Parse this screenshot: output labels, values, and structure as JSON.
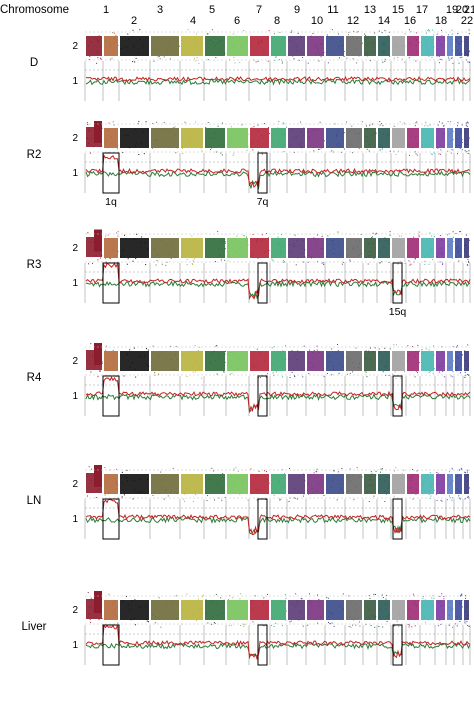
{
  "chart_data": {
    "type": "scatter",
    "axis_title": "Chromosome",
    "chromosomes": [
      "1",
      "2",
      "3",
      "4",
      "5",
      "6",
      "7",
      "8",
      "9",
      "10",
      "11",
      "12",
      "13",
      "14",
      "15",
      "16",
      "17",
      "18",
      "19",
      "20",
      "21",
      "22"
    ],
    "chromosome_colors": [
      "#8c1c2e",
      "#b3693c",
      "#111111",
      "#6e6c3a",
      "#b8b33c",
      "#2e6b3a",
      "#77c25c",
      "#b3263a",
      "#3ea670",
      "#5a3a75",
      "#7a3380",
      "#3a4a86",
      "#696969",
      "#3a5a40",
      "#2a5a55",
      "#a0a0a0",
      "#9e2a74",
      "#47b5b1",
      "#7d3aa0",
      "#5b7bc4",
      "#3c4a9c",
      "#3a3a7a"
    ],
    "bin_counts": [
      34,
      20,
      12,
      8,
      12
    ],
    "series_colors": {
      "upper": "#c22222",
      "lower": "#2f7a3a"
    },
    "y_ticks": {
      "upper_panel": "2",
      "lower_panel": "1"
    },
    "samples": [
      {
        "name": "D",
        "annotations": [],
        "boxes": []
      },
      {
        "name": "R2",
        "annotations": [
          "1q",
          "7q"
        ],
        "boxes": [
          "1q",
          "7q"
        ],
        "gain_1q": 1.6,
        "loss_7q": 0.55
      },
      {
        "name": "R3",
        "annotations": [
          "15q"
        ],
        "boxes": [
          "1q",
          "7q",
          "15q"
        ],
        "gain_1q": 1.9,
        "loss_7q": 0.55,
        "loss_15q": 0.55
      },
      {
        "name": "R4",
        "annotations": [],
        "boxes": [
          "1q",
          "7q",
          "15q"
        ],
        "gain_1q": 1.8,
        "loss_7q": 0.55,
        "loss_15q": 0.55
      },
      {
        "name": "LN",
        "annotations": [],
        "boxes": [
          "1q",
          "7q",
          "15q"
        ],
        "gain_1q": 2.0,
        "loss_7q": 0.55,
        "loss_15q": 0.55
      },
      {
        "name": "Liver",
        "annotations": [],
        "boxes": [
          "1q",
          "7q",
          "15q"
        ],
        "gain_1q": 2.0,
        "loss_7q": 0.55,
        "loss_15q": 0.55
      }
    ]
  }
}
